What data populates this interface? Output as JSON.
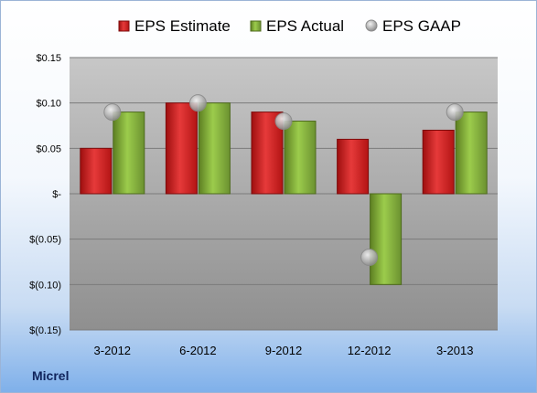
{
  "company": "Micrel",
  "chart_data": {
    "type": "bar",
    "categories": [
      "3-2012",
      "6-2012",
      "9-2012",
      "12-2012",
      "3-2013"
    ],
    "series": [
      {
        "name": "EPS Estimate",
        "type": "bar",
        "color": "#d11a1a",
        "values": [
          0.05,
          0.1,
          0.09,
          0.06,
          0.07
        ]
      },
      {
        "name": "EPS Actual",
        "type": "bar",
        "color": "#7fa83c",
        "values": [
          0.09,
          0.1,
          0.08,
          -0.1,
          0.09
        ]
      },
      {
        "name": "EPS GAAP",
        "type": "marker",
        "color": "#b4b4b4",
        "values": [
          0.09,
          0.1,
          0.08,
          -0.07,
          0.09
        ]
      }
    ],
    "ylim": [
      -0.15,
      0.15
    ],
    "yticks": [
      0.15,
      0.1,
      0.05,
      0,
      -0.05,
      -0.1,
      -0.15
    ],
    "ytick_labels": [
      "$0.15",
      "$0.10",
      "$0.05",
      "$-",
      "$(0.05)",
      "$(0.10)",
      "$(0.15)"
    ],
    "grid": true,
    "legend_position": "top"
  }
}
